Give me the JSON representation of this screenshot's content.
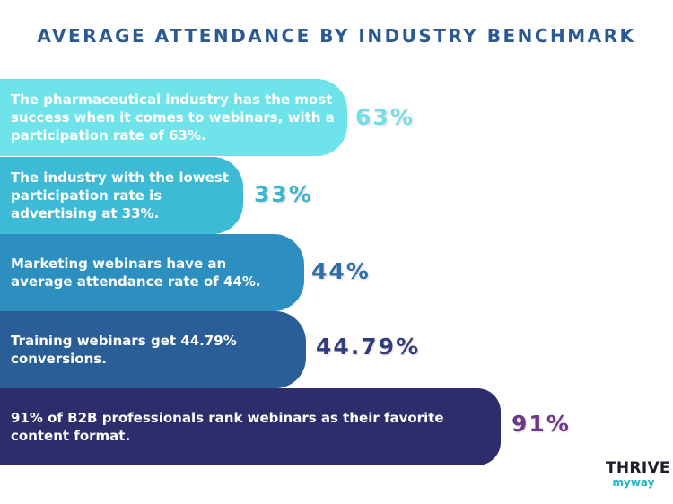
{
  "header": {
    "title": "AVERAGE ATTENDANCE BY INDUSTRY BENCHMARK"
  },
  "chart_data": {
    "type": "bar",
    "title": "AVERAGE ATTENDANCE BY INDUSTRY BENCHMARK",
    "orientation": "horizontal",
    "categories": [
      "The pharmaceutical industry has the most success when it comes to webinars, with a participation rate of 63%.",
      "The industry with the lowest participation rate is advertising at 33%.",
      "Marketing webinars have an average attendance rate of 44%.",
      "Training webinars get 44.79% conversions.",
      "91% of B2B professionals rank webinars as their favorite content format."
    ],
    "values": [
      63,
      33,
      44,
      44.79,
      91
    ],
    "value_labels": [
      "63%",
      "33%",
      "44%",
      "44.79%",
      "91%"
    ],
    "bar_colors": [
      "#6ee3ea",
      "#3dbad6",
      "#2c8fbf",
      "#2a5e96",
      "#2e2d6b"
    ],
    "label_colors": [
      "#6fe0e6",
      "#3bb6cf",
      "#2c6fa8",
      "#2d3f78",
      "#6a3a84"
    ]
  },
  "brand": {
    "logo_top": "THRIVE",
    "logo_bottom": "myway"
  }
}
